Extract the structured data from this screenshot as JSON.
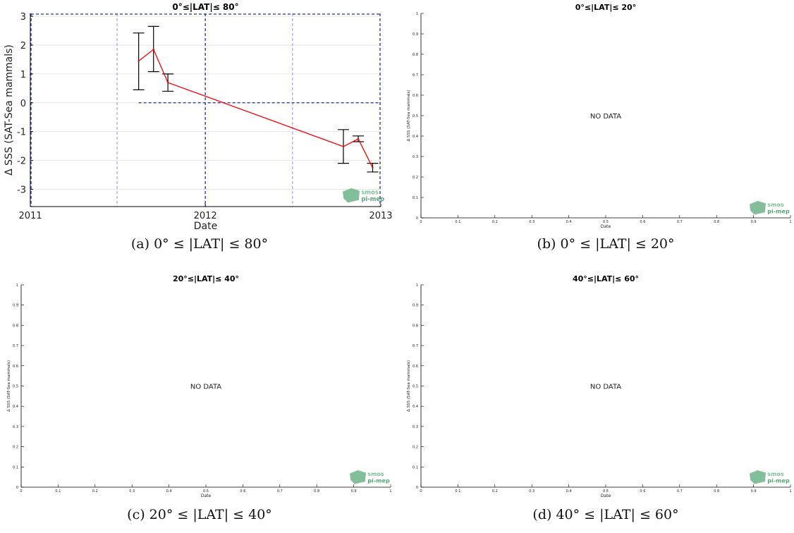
{
  "colors": {
    "series": "#ff0000",
    "errorbar": "#000000",
    "refline": "#1f2fb0",
    "minor_vline": "#8f8fef",
    "axis": "#000000",
    "logo": "#6db38a"
  },
  "logo": {
    "line1": "smos",
    "line2": "pi-mep"
  },
  "panels": [
    {
      "title": "0°≤|LAT|≤ 80°",
      "caption": "(a) 0° ≤ |LAT| ≤ 80°",
      "xlabel": "Date",
      "ylabel": "Δ SSS (SAT-Sea mammals)",
      "has_data": true,
      "chart_data": {
        "type": "line",
        "xlim": [
          "2011-01-01",
          "2013-01-01"
        ],
        "ylim": [
          -3.6,
          3.1
        ],
        "xticks": [
          "2011",
          "2012",
          "2013"
        ],
        "yticks": [
          "3",
          "2",
          "1",
          "0",
          "-1",
          "-2",
          "-3"
        ],
        "grid": "horizontal",
        "reference_lines": {
          "y_zero": 0,
          "major_x": [
            "2012-01-01"
          ],
          "minor_x": [
            "2011-07-01",
            "2012-07-01"
          ]
        },
        "series": [
          {
            "x": [
              "2011-08-15",
              "2011-09-15",
              "2011-10-15",
              "2012-10-15",
              "2012-11-15",
              "2012-12-15"
            ],
            "y": [
              1.45,
              1.85,
              0.7,
              -1.52,
              -1.25,
              -2.25
            ],
            "err_low": [
              0.45,
              1.08,
              0.4,
              -2.1,
              -1.35,
              -2.4
            ],
            "err_high": [
              2.42,
              2.65,
              1.0,
              -0.93,
              -1.15,
              -2.1
            ]
          }
        ]
      }
    },
    {
      "title": "0°≤|LAT|≤ 20°",
      "caption": "(b) 0° ≤ |LAT| ≤ 20°",
      "xlabel": "Date",
      "ylabel": "Δ SSS (SAT-Sea mammals)",
      "has_data": false,
      "no_data": "NO DATA",
      "chart_data": {
        "type": "line",
        "xlim": [
          0,
          1
        ],
        "ylim": [
          0,
          1
        ],
        "xticks": [
          "0",
          "0.1",
          "0.2",
          "0.3",
          "0.4",
          "0.5",
          "0.6",
          "0.7",
          "0.8",
          "0.9",
          "1"
        ],
        "yticks": [
          "1",
          "0.9",
          "0.8",
          "0.7",
          "0.6",
          "0.5",
          "0.4",
          "0.3",
          "0.2",
          "0.1",
          "0"
        ],
        "series": []
      }
    },
    {
      "title": "20°≤|LAT|≤ 40°",
      "caption": "(c) 20° ≤ |LAT| ≤ 40°",
      "xlabel": "Date",
      "ylabel": "Δ SSS (SAT-Sea mammals)",
      "has_data": false,
      "no_data": "NO DATA",
      "chart_data": {
        "type": "line",
        "xlim": [
          0,
          1
        ],
        "ylim": [
          0,
          1
        ],
        "xticks": [
          "0",
          "0.1",
          "0.2",
          "0.3",
          "0.4",
          "0.5",
          "0.6",
          "0.7",
          "0.8",
          "0.9",
          "1"
        ],
        "yticks": [
          "1",
          "0.9",
          "0.8",
          "0.7",
          "0.6",
          "0.5",
          "0.4",
          "0.3",
          "0.2",
          "0.1",
          "0"
        ],
        "series": []
      }
    },
    {
      "title": "40°≤|LAT|≤ 60°",
      "caption": "(d) 40° ≤ |LAT| ≤ 60°",
      "xlabel": "Date",
      "ylabel": "Δ SSS (SAT-Sea mammals)",
      "has_data": false,
      "no_data": "NO DATA",
      "chart_data": {
        "type": "line",
        "xlim": [
          0,
          1
        ],
        "ylim": [
          0,
          1
        ],
        "xticks": [
          "0",
          "0.1",
          "0.2",
          "0.3",
          "0.4",
          "0.5",
          "0.6",
          "0.7",
          "0.8",
          "0.9",
          "1"
        ],
        "yticks": [
          "1",
          "0.9",
          "0.8",
          "0.7",
          "0.6",
          "0.5",
          "0.4",
          "0.3",
          "0.2",
          "0.1",
          "0"
        ],
        "series": []
      }
    }
  ]
}
